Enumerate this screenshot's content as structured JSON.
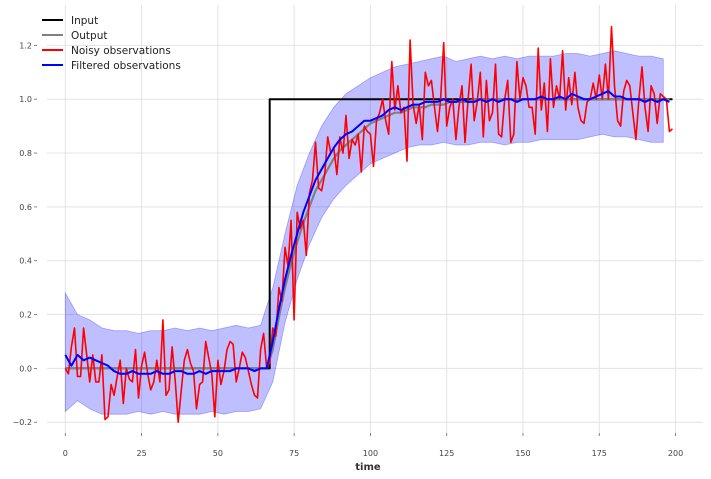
{
  "chart_data": {
    "type": "line",
    "title": "",
    "xlabel": "time",
    "ylabel": "",
    "xlim": [
      -6,
      209
    ],
    "ylim": [
      -0.24,
      1.35
    ],
    "grid": true,
    "legend_position": "top-left",
    "x_ticks": [
      0,
      25,
      50,
      75,
      100,
      125,
      150,
      175,
      200
    ],
    "y_ticks": [
      -0.2,
      0.0,
      0.2,
      0.4,
      0.6,
      0.8,
      1.0,
      1.2
    ],
    "x_tick_labels": [
      "0",
      "25",
      "50",
      "75",
      "100",
      "125",
      "150",
      "175",
      "200"
    ],
    "y_tick_labels": [
      "−0.2",
      "0.0",
      "0.2",
      "0.4",
      "0.6",
      "0.8",
      "1.0",
      "1.2"
    ],
    "series": [
      {
        "name": "Input",
        "color": "#000000",
        "x": [
          0,
          67,
          67,
          199
        ],
        "y": [
          0,
          0,
          1,
          1
        ]
      },
      {
        "name": "Output",
        "color": "#808080",
        "x_step": 2,
        "y": [
          0,
          0,
          0,
          0,
          0,
          0,
          0,
          0,
          0,
          0,
          0,
          0,
          0,
          0,
          0,
          0,
          0,
          0,
          0,
          0,
          0,
          0,
          0,
          0,
          0,
          0,
          0,
          0,
          0,
          0,
          0,
          0,
          0,
          0,
          0.07,
          0.19,
          0.3,
          0.39,
          0.47,
          0.54,
          0.6,
          0.66,
          0.7,
          0.74,
          0.78,
          0.81,
          0.83,
          0.85,
          0.87,
          0.89,
          0.91,
          0.92,
          0.93,
          0.94,
          0.95,
          0.95,
          0.96,
          0.97,
          0.97,
          0.97,
          0.98,
          0.98,
          0.98,
          0.99,
          0.99,
          0.99,
          0.99,
          1,
          1,
          1,
          1,
          1,
          1,
          1,
          1,
          1,
          1,
          1,
          1,
          1,
          1,
          1,
          1,
          1,
          1,
          1,
          1,
          1,
          1,
          1,
          1,
          1,
          1,
          1,
          1,
          1,
          1,
          1,
          1,
          1
        ]
      },
      {
        "name": "Noisy observations",
        "color": "#ff0000",
        "x_step": 1,
        "y": [
          0.0,
          -0.02,
          0.08,
          0.15,
          -0.03,
          -0.03,
          0.15,
          0.05,
          -0.05,
          0.05,
          -0.05,
          -0.05,
          0.05,
          -0.19,
          -0.18,
          -0.06,
          -0.1,
          -0.03,
          0.03,
          -0.13,
          0.0,
          -0.04,
          -0.05,
          0.07,
          -0.11,
          0.01,
          0.06,
          -0.02,
          -0.08,
          -0.05,
          0.03,
          -0.05,
          0.18,
          -0.1,
          -0.08,
          0.08,
          -0.04,
          -0.2,
          -0.08,
          0.03,
          0.07,
          0.02,
          -0.01,
          -0.15,
          -0.06,
          -0.05,
          0.1,
          0.04,
          -0.02,
          -0.18,
          0.03,
          -0.06,
          -0.01,
          0.07,
          0.1,
          0.09,
          -0.05,
          0.0,
          0.06,
          0.04,
          -0.01,
          -0.06,
          -0.1,
          -0.11,
          0.07,
          0.13,
          0.0,
          0.02,
          0.15,
          0.12,
          0.3,
          0.25,
          0.45,
          0.38,
          0.55,
          0.18,
          0.58,
          0.52,
          0.55,
          0.42,
          0.65,
          0.7,
          0.84,
          0.67,
          0.66,
          0.72,
          0.86,
          0.8,
          0.82,
          0.72,
          0.86,
          0.8,
          0.94,
          0.78,
          0.85,
          0.83,
          0.87,
          0.73,
          0.9,
          0.88,
          0.87,
          0.75,
          0.92,
          0.95,
          1.0,
          0.92,
          0.87,
          1.14,
          0.96,
          1.05,
          0.95,
          0.97,
          0.77,
          1.22,
          0.98,
          0.91,
          0.98,
          0.85,
          1.1,
          1.05,
          1.07,
          0.97,
          0.88,
          1.0,
          1.21,
          0.9,
          0.97,
          1.0,
          0.85,
          0.97,
          1.05,
          0.84,
          1.0,
          1.13,
          0.92,
          0.99,
          1.1,
          0.86,
          1.07,
          0.92,
          0.95,
          1.13,
          0.87,
          0.86,
          1.0,
          1.07,
          0.84,
          0.87,
          1.14,
          1.0,
          1.08,
          1.05,
          0.97,
          0.97,
          0.87,
          1.19,
          0.96,
          1.06,
          0.88,
          1.15,
          0.97,
          1.05,
          1.0,
          1.18,
          0.96,
          1.08,
          0.98,
          1.1,
          0.97,
          0.92,
          0.91,
          0.99,
          1.0,
          1.06,
          1.0,
          1.09,
          1.0,
          1.13,
          1.0,
          1.27,
          1.05,
          0.92,
          0.9,
          1.03,
          1.07,
          1.05,
          0.95,
          0.85,
          1.0,
          1.12,
          0.97,
          0.88,
          1.05,
          1.02,
          0.91,
          1.02,
          1.01,
          1.0,
          0.88,
          0.89
        ]
      },
      {
        "name": "Filtered observations",
        "color": "#0000ff",
        "x_step": 2,
        "y": [
          0.05,
          0.01,
          0.05,
          0.03,
          0.04,
          0.03,
          0.02,
          0.01,
          -0.01,
          -0.02,
          -0.02,
          -0.01,
          -0.02,
          -0.02,
          -0.02,
          -0.01,
          -0.02,
          -0.02,
          -0.01,
          -0.01,
          -0.02,
          -0.02,
          -0.01,
          -0.02,
          -0.01,
          -0.01,
          -0.01,
          -0.01,
          0.0,
          0.0,
          0.0,
          -0.01,
          0.0,
          0.0,
          0.1,
          0.22,
          0.33,
          0.42,
          0.5,
          0.58,
          0.64,
          0.7,
          0.74,
          0.78,
          0.82,
          0.85,
          0.87,
          0.88,
          0.9,
          0.92,
          0.92,
          0.93,
          0.94,
          0.96,
          0.97,
          0.96,
          0.97,
          0.98,
          0.98,
          0.99,
          0.99,
          0.99,
          1.0,
          0.99,
          0.99,
          1.0,
          0.99,
          0.99,
          1.0,
          0.99,
          1.0,
          0.99,
          1.0,
          1.0,
          0.99,
          1.0,
          1.0,
          1.0,
          1.01,
          1.0,
          1.0,
          1.01,
          1.0,
          1.02,
          1.01,
          1.0,
          1.0,
          1.01,
          1.02,
          1.03,
          1.01,
          1.01,
          1.0,
          1.0,
          1.0,
          0.99,
          1.0,
          0.99,
          1.0,
          0.99
        ]
      }
    ],
    "band": {
      "color": "#0000ff",
      "opacity": 0.25,
      "x_step": 4,
      "upper": [
        0.28,
        0.2,
        0.18,
        0.15,
        0.14,
        0.14,
        0.13,
        0.14,
        0.14,
        0.15,
        0.14,
        0.15,
        0.14,
        0.15,
        0.16,
        0.15,
        0.16,
        0.3,
        0.5,
        0.68,
        0.8,
        0.9,
        0.97,
        1.02,
        1.05,
        1.08,
        1.1,
        1.12,
        1.13,
        1.14,
        1.15,
        1.16,
        1.14,
        1.15,
        1.16,
        1.15,
        1.16,
        1.15,
        1.16,
        1.16,
        1.16,
        1.17,
        1.17,
        1.16,
        1.17,
        1.18,
        1.17,
        1.16,
        1.16,
        1.15
      ],
      "lower": [
        -0.16,
        -0.12,
        -0.15,
        -0.17,
        -0.17,
        -0.17,
        -0.16,
        -0.17,
        -0.16,
        -0.17,
        -0.17,
        -0.17,
        -0.16,
        -0.17,
        -0.16,
        -0.16,
        -0.15,
        -0.05,
        0.17,
        0.33,
        0.46,
        0.56,
        0.63,
        0.68,
        0.72,
        0.76,
        0.78,
        0.8,
        0.82,
        0.83,
        0.83,
        0.84,
        0.83,
        0.83,
        0.84,
        0.84,
        0.83,
        0.84,
        0.84,
        0.85,
        0.85,
        0.85,
        0.85,
        0.86,
        0.87,
        0.86,
        0.86,
        0.85,
        0.84,
        0.84
      ]
    }
  }
}
